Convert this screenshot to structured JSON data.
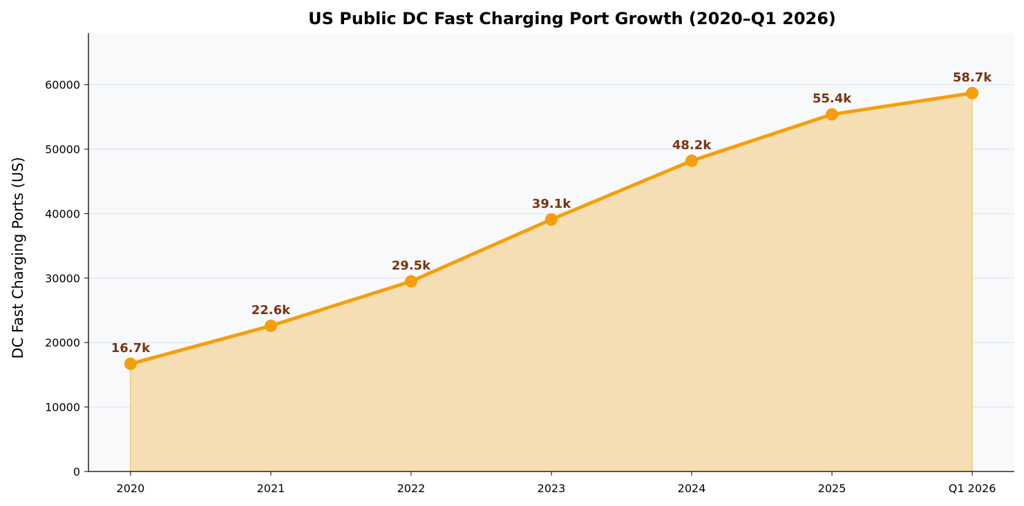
{
  "chart_data": {
    "type": "area",
    "title": "US Public DC Fast Charging Port Growth (2020–Q1 2026)",
    "xlabel": "",
    "ylabel": "DC Fast Charging Ports (US)",
    "categories": [
      "2020",
      "2021",
      "2022",
      "2023",
      "2024",
      "2025",
      "Q1 2026"
    ],
    "values": [
      16700,
      22600,
      29500,
      39100,
      48200,
      55400,
      58700
    ],
    "data_labels": [
      "16.7k",
      "22.6k",
      "29.5k",
      "39.1k",
      "48.2k",
      "55.4k",
      "58.7k"
    ],
    "yticks": [
      0,
      10000,
      20000,
      30000,
      40000,
      50000,
      60000
    ],
    "ylim": [
      0,
      68000
    ],
    "grid": "horizontal",
    "colors": {
      "line": "#f59e0b",
      "fill": "#f5deb3",
      "label": "#7a3410",
      "background": "#f8f9fb",
      "grid": "#e2e4e8"
    }
  }
}
